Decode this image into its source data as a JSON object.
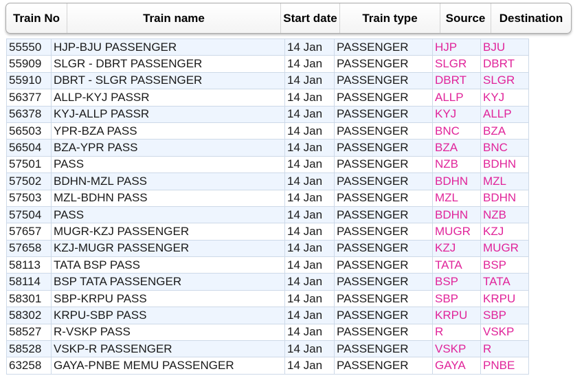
{
  "header": {
    "train_no": "Train No",
    "train_name": "Train name",
    "start_date": "Start date",
    "train_type": "Train type",
    "source": "Source",
    "destination": "Destination"
  },
  "rows": [
    {
      "no": "55550",
      "name": "HJP-BJU PASSENGER",
      "date": "14 Jan",
      "type": "PASSENGER",
      "src": "HJP",
      "dst": "BJU"
    },
    {
      "no": "55909",
      "name": "SLGR - DBRT PASSENGER",
      "date": "14 Jan",
      "type": "PASSENGER",
      "src": "SLGR",
      "dst": "DBRT"
    },
    {
      "no": "55910",
      "name": "DBRT - SLGR PASSENGER",
      "date": "14 Jan",
      "type": "PASSENGER",
      "src": "DBRT",
      "dst": "SLGR"
    },
    {
      "no": "56377",
      "name": "ALLP-KYJ PASSR",
      "date": "14 Jan",
      "type": "PASSENGER",
      "src": "ALLP",
      "dst": "KYJ"
    },
    {
      "no": "56378",
      "name": "KYJ-ALLP PASSR",
      "date": "14 Jan",
      "type": "PASSENGER",
      "src": "KYJ",
      "dst": "ALLP"
    },
    {
      "no": "56503",
      "name": "YPR-BZA PASS",
      "date": "14 Jan",
      "type": "PASSENGER",
      "src": "BNC",
      "dst": "BZA"
    },
    {
      "no": "56504",
      "name": "BZA-YPR PASS",
      "date": "14 Jan",
      "type": "PASSENGER",
      "src": "BZA",
      "dst": "BNC"
    },
    {
      "no": "57501",
      "name": "PASS",
      "date": "14 Jan",
      "type": "PASSENGER",
      "src": "NZB",
      "dst": "BDHN"
    },
    {
      "no": "57502",
      "name": "BDHN-MZL PASS",
      "date": "14 Jan",
      "type": "PASSENGER",
      "src": "BDHN",
      "dst": "MZL"
    },
    {
      "no": "57503",
      "name": "MZL-BDHN PASS",
      "date": "14 Jan",
      "type": "PASSENGER",
      "src": "MZL",
      "dst": "BDHN"
    },
    {
      "no": "57504",
      "name": "PASS",
      "date": "14 Jan",
      "type": "PASSENGER",
      "src": "BDHN",
      "dst": "NZB"
    },
    {
      "no": "57657",
      "name": "MUGR-KZJ PASSENGER",
      "date": "14 Jan",
      "type": "PASSENGER",
      "src": "MUGR",
      "dst": "KZJ"
    },
    {
      "no": "57658",
      "name": "KZJ-MUGR PASSENGER",
      "date": "14 Jan",
      "type": "PASSENGER",
      "src": "KZJ",
      "dst": "MUGR"
    },
    {
      "no": "58113",
      "name": "TATA BSP PASS",
      "date": "14 Jan",
      "type": "PASSENGER",
      "src": "TATA",
      "dst": "BSP"
    },
    {
      "no": "58114",
      "name": "BSP TATA PASSENGER",
      "date": "14 Jan",
      "type": "PASSENGER",
      "src": "BSP",
      "dst": "TATA"
    },
    {
      "no": "58301",
      "name": "SBP-KRPU PASS",
      "date": "14 Jan",
      "type": "PASSENGER",
      "src": "SBP",
      "dst": "KRPU"
    },
    {
      "no": "58302",
      "name": "KRPU-SBP PASS",
      "date": "14 Jan",
      "type": "PASSENGER",
      "src": "KRPU",
      "dst": "SBP"
    },
    {
      "no": "58527",
      "name": "R-VSKP PASS",
      "date": "14 Jan",
      "type": "PASSENGER",
      "src": "R",
      "dst": "VSKP"
    },
    {
      "no": "58528",
      "name": "VSKP-R PASSENGER",
      "date": "14 Jan",
      "type": "PASSENGER",
      "src": "VSKP",
      "dst": "R"
    },
    {
      "no": "63258",
      "name": "GAYA-PNBE MEMU PASSENGER",
      "date": "14 Jan",
      "type": "PASSENGER",
      "src": "GAYA",
      "dst": "PNBE"
    }
  ],
  "colors": {
    "station_code": "#e0249a",
    "row_alt": "#eef5fe",
    "grid": "#cdd9e8"
  }
}
